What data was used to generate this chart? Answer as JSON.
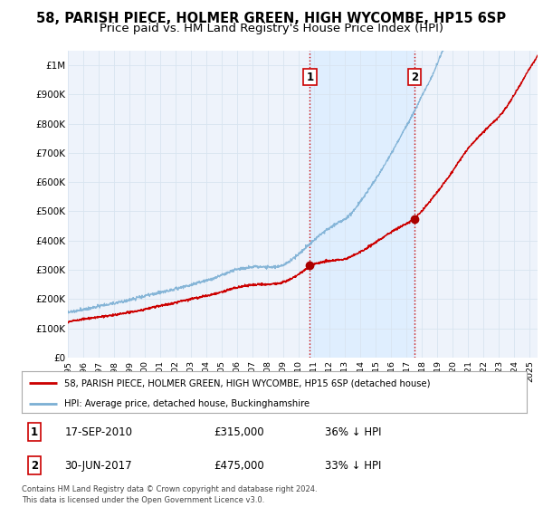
{
  "title": "58, PARISH PIECE, HOLMER GREEN, HIGH WYCOMBE, HP15 6SP",
  "subtitle": "Price paid vs. HM Land Registry's House Price Index (HPI)",
  "title_fontsize": 10.5,
  "subtitle_fontsize": 9.5,
  "background_color": "#ffffff",
  "plot_bg_color": "#eef3fb",
  "grid_color": "#d8e4f0",
  "ylim": [
    0,
    1050000
  ],
  "yticks": [
    0,
    100000,
    200000,
    300000,
    400000,
    500000,
    600000,
    700000,
    800000,
    900000,
    1000000
  ],
  "ytick_labels": [
    "£0",
    "£100K",
    "£200K",
    "£300K",
    "£400K",
    "£500K",
    "£600K",
    "£700K",
    "£800K",
    "£900K",
    "£1M"
  ],
  "hpi_color": "#7bafd4",
  "price_color": "#cc0000",
  "vline_color": "#cc0000",
  "vline_style": ":",
  "sale1_x": 2010.72,
  "sale1_y": 315000,
  "sale1_label": "1",
  "sale2_x": 2017.5,
  "sale2_y": 475000,
  "sale2_label": "2",
  "marker_color": "#aa0000",
  "marker_size": 6,
  "legend_label_red": "58, PARISH PIECE, HOLMER GREEN, HIGH WYCOMBE, HP15 6SP (detached house)",
  "legend_label_blue": "HPI: Average price, detached house, Buckinghamshire",
  "annotation1_date": "17-SEP-2010",
  "annotation1_price": "£315,000",
  "annotation1_hpi": "36% ↓ HPI",
  "annotation2_date": "30-JUN-2017",
  "annotation2_price": "£475,000",
  "annotation2_hpi": "33% ↓ HPI",
  "footer": "Contains HM Land Registry data © Crown copyright and database right 2024.\nThis data is licensed under the Open Government Licence v3.0.",
  "xmin": 1995,
  "xmax": 2025.5,
  "xtick_years": [
    1995,
    1996,
    1997,
    1998,
    1999,
    2000,
    2001,
    2002,
    2003,
    2004,
    2005,
    2006,
    2007,
    2008,
    2009,
    2010,
    2011,
    2012,
    2013,
    2014,
    2015,
    2016,
    2017,
    2018,
    2019,
    2020,
    2021,
    2022,
    2023,
    2024,
    2025
  ]
}
